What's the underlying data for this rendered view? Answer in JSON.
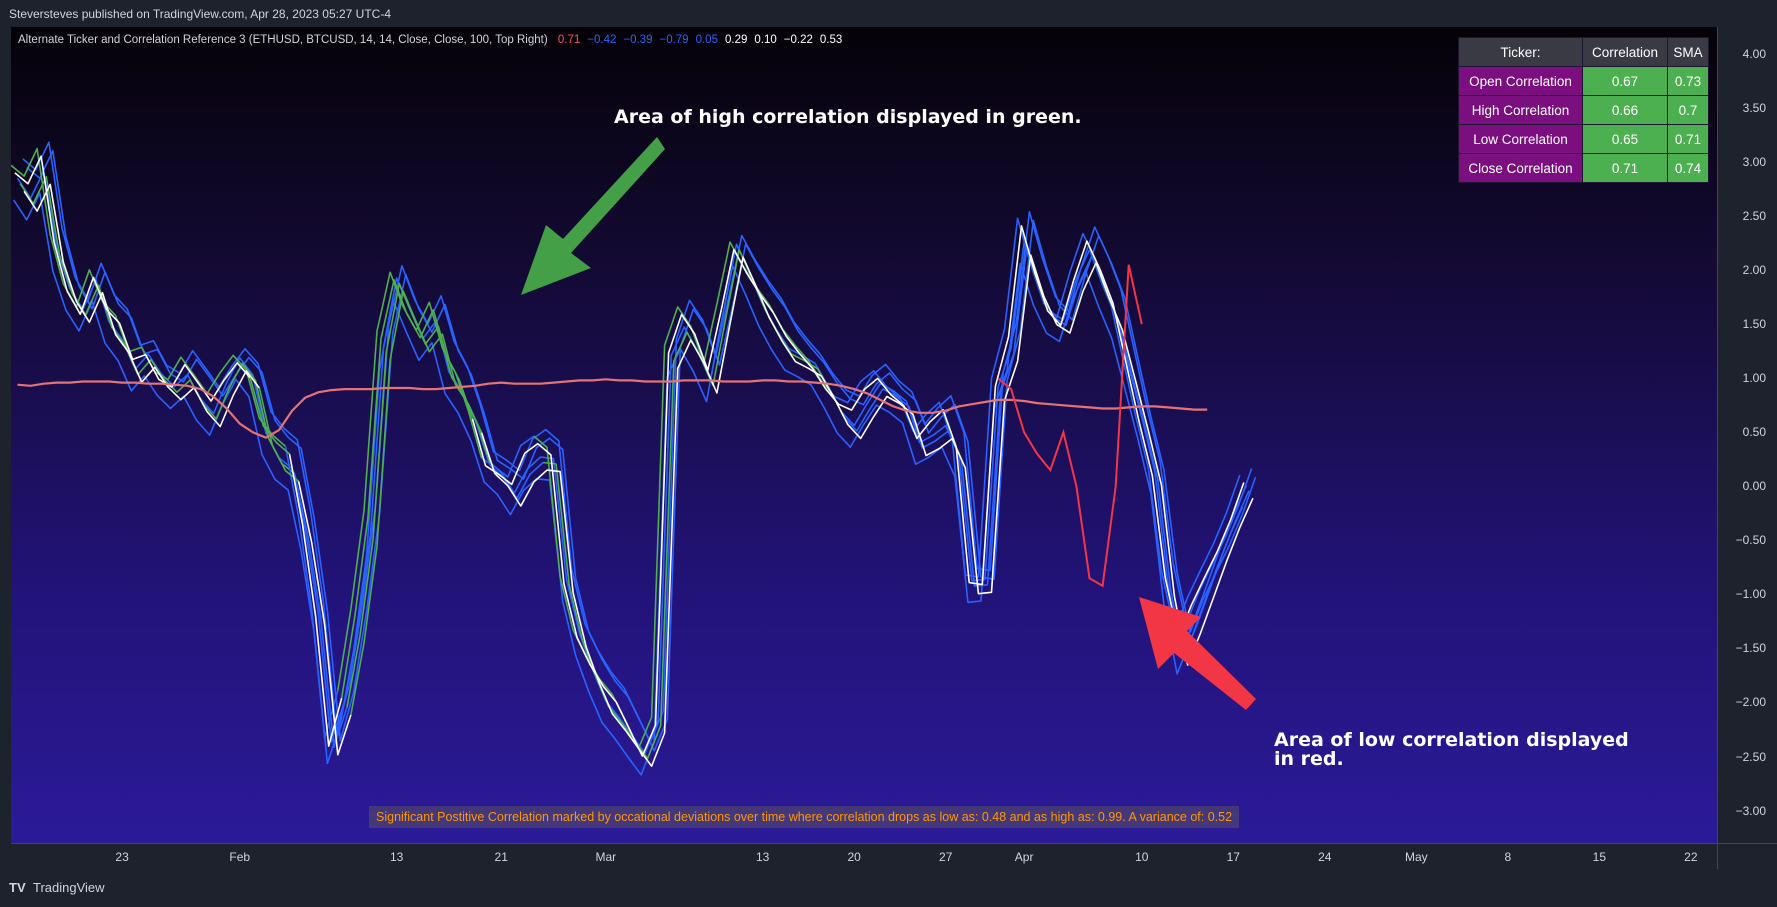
{
  "header": {
    "text": "Steversteves published on TradingView.com, Apr 28, 2023 05:27 UTC-4"
  },
  "indicator": {
    "title": "Alternate Ticker and Correlation Reference 3 (ETHUSD, BTCUSD, 14, 14, Close, Close, 100, Top Right)",
    "values": [
      {
        "text": "0.71",
        "color": "#f7525f"
      },
      {
        "text": "−0.42",
        "color": "#2962ff"
      },
      {
        "text": "−0.39",
        "color": "#2962ff"
      },
      {
        "text": "−0.79",
        "color": "#2962ff"
      },
      {
        "text": "0.05",
        "color": "#2962ff"
      },
      {
        "text": "0.29",
        "color": "#ffffff"
      },
      {
        "text": "0.10",
        "color": "#ffffff"
      },
      {
        "text": "−0.22",
        "color": "#ffffff"
      },
      {
        "text": "0.53",
        "color": "#ffffff"
      }
    ]
  },
  "table": {
    "headers": [
      "Ticker:",
      "Correlation",
      "SMA"
    ],
    "rows": [
      {
        "name": "Open Correlation",
        "corr": "0.67",
        "sma": "0.73"
      },
      {
        "name": "High Correlation",
        "corr": "0.66",
        "sma": "0.7"
      },
      {
        "name": "Low Correlation",
        "corr": "0.65",
        "sma": "0.71"
      },
      {
        "name": "Close Correlation",
        "corr": "0.71",
        "sma": "0.74"
      }
    ]
  },
  "annotations": {
    "green": "Area of high correlation displayed in green.",
    "red_line1": "Area of low correlation displayed",
    "red_line2": "in red."
  },
  "footnote": "Significant Postitive Correlation marked by occational deviations over time where correlation drops as low as: 0.48 and as high as: 0.99. A variance of: 0.52",
  "brand": {
    "logo": "TV",
    "name": "TradingView"
  },
  "colors": {
    "blue": "#2962ff",
    "green": "#4caf50",
    "white": "#ffffff",
    "corr": "#e57373",
    "lowCorr": "#f23645",
    "annGreen": "#43a047",
    "annRed": "#f23645"
  },
  "chart_data": {
    "type": "line",
    "y_ticks": [
      "4.00",
      "3.50",
      "3.00",
      "2.50",
      "2.00",
      "1.50",
      "1.00",
      "0.50",
      "0.00",
      "−0.50",
      "−1.00",
      "−1.50",
      "−2.00",
      "−2.50",
      "−3.00"
    ],
    "y_tick_values": [
      4,
      3.5,
      3,
      2.5,
      2,
      1.5,
      1,
      0.5,
      0,
      -0.5,
      -1,
      -1.5,
      -2,
      -2.5,
      -3
    ],
    "ylim": [
      -3.3,
      4.25
    ],
    "x_ticks": [
      {
        "label": "23",
        "idx": 3
      },
      {
        "label": "Feb",
        "idx": 12
      },
      {
        "label": "13",
        "idx": 24
      },
      {
        "label": "21",
        "idx": 32
      },
      {
        "label": "Mar",
        "idx": 40
      },
      {
        "label": "13",
        "idx": 52
      },
      {
        "label": "20",
        "idx": 59
      },
      {
        "label": "27",
        "idx": 66
      },
      {
        "label": "Apr",
        "idx": 72
      },
      {
        "label": "10",
        "idx": 81
      },
      {
        "label": "17",
        "idx": 88
      },
      {
        "label": "24",
        "idx": 95
      },
      {
        "label": "May",
        "idx": 102
      },
      {
        "label": "8",
        "idx": 109
      },
      {
        "label": "15",
        "idx": 116
      },
      {
        "label": "22",
        "idx": 123
      }
    ],
    "x_index_range": [
      -5.5,
      125
    ],
    "x_start": -5,
    "series": [
      {
        "name": "main",
        "values": [
          2.85,
          2.7,
          2.95,
          2.2,
          1.8,
          1.6,
          1.9,
          1.55,
          1.4,
          1.1,
          1.2,
          1.0,
          0.9,
          1.05,
          0.85,
          0.7,
          0.95,
          1.15,
          1.0,
          0.5,
          0.3,
          0.2,
          -0.4,
          -1.2,
          -2.4,
          -2.0,
          -1.3,
          -0.4,
          1.3,
          1.9,
          1.6,
          1.35,
          1.55,
          1.1,
          0.9,
          0.6,
          0.2,
          0.1,
          -0.05,
          0.2,
          0.3,
          0.25,
          -0.9,
          -1.4,
          -1.7,
          -1.95,
          -2.1,
          -2.3,
          -2.5,
          -2.2,
          1.2,
          1.5,
          1.3,
          1.0,
          1.6,
          2.2,
          1.95,
          1.7,
          1.5,
          1.3,
          1.2,
          1.1,
          0.9,
          0.7,
          0.6,
          0.8,
          0.95,
          0.85,
          0.75,
          0.4,
          0.5,
          0.6,
          0.3,
          -0.9,
          -0.9,
          0.9,
          1.3,
          2.3,
          1.9,
          1.6,
          1.5,
          1.9,
          2.2,
          1.9,
          1.6,
          1.1,
          0.6,
          0.1,
          -0.9,
          -1.5,
          -1.2,
          -0.9,
          -0.6,
          -0.3,
          0.0
        ]
      },
      {
        "name": "corr",
        "values": [
          0.94,
          0.93,
          0.95,
          0.96,
          0.96,
          0.97,
          0.97,
          0.97,
          0.96,
          0.96,
          0.95,
          0.95,
          0.94,
          0.93,
          0.9,
          0.83,
          0.72,
          0.58,
          0.5,
          0.45,
          0.52,
          0.7,
          0.82,
          0.87,
          0.89,
          0.9,
          0.9,
          0.9,
          0.91,
          0.91,
          0.91,
          0.9,
          0.9,
          0.91,
          0.92,
          0.93,
          0.95,
          0.96,
          0.95,
          0.95,
          0.95,
          0.96,
          0.97,
          0.98,
          0.98,
          0.99,
          0.98,
          0.98,
          0.97,
          0.97,
          0.97,
          0.98,
          0.98,
          0.98,
          0.97,
          0.97,
          0.97,
          0.98,
          0.98,
          0.97,
          0.97,
          0.96,
          0.95,
          0.93,
          0.9,
          0.86,
          0.8,
          0.74,
          0.7,
          0.68,
          0.68,
          0.7,
          0.74,
          0.76,
          0.78,
          0.8,
          0.8,
          0.79,
          0.77,
          0.76,
          0.75,
          0.74,
          0.73,
          0.72,
          0.72,
          0.73,
          0.74,
          0.74,
          0.73,
          0.72,
          0.71,
          0.71
        ]
      },
      {
        "name": "lowcorr",
        "values": [
          1.0,
          0.9,
          0.5,
          0.3,
          0.15,
          0.5,
          0.0,
          -0.85,
          -0.92,
          0.0,
          2.05,
          1.5
        ],
        "start_idx": 70
      }
    ]
  }
}
